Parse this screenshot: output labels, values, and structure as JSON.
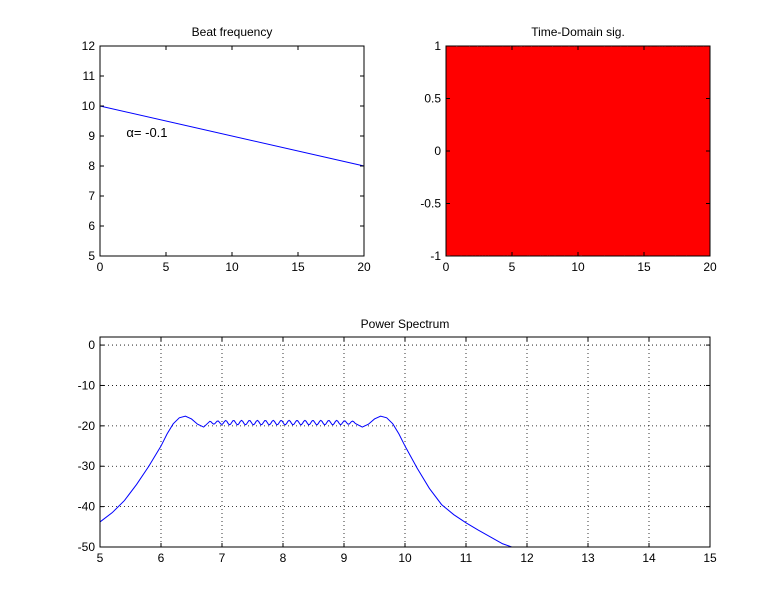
{
  "chart_data": [
    {
      "id": "beat",
      "type": "line",
      "title": "Beat frequency",
      "xlabel": "",
      "ylabel": "",
      "xlim": [
        0,
        20
      ],
      "ylim": [
        5,
        12
      ],
      "xticks": [
        0,
        5,
        10,
        15,
        20
      ],
      "yticks": [
        5,
        6,
        7,
        8,
        9,
        10,
        11,
        12
      ],
      "grid": false,
      "annotation": {
        "prefix": "α",
        "text": "= -0.1",
        "x": 2,
        "y": 9.1
      },
      "series": [
        {
          "color": "#0000ff",
          "x": [
            0,
            20
          ],
          "y": [
            10,
            8
          ]
        }
      ]
    },
    {
      "id": "time",
      "type": "line",
      "title": "Time-Domain sig.",
      "xlabel": "",
      "ylabel": "",
      "xlim": [
        0,
        20
      ],
      "ylim": [
        -1,
        1
      ],
      "xticks": [
        0,
        5,
        10,
        15,
        20
      ],
      "yticks": [
        -1,
        -0.5,
        0,
        0.5,
        1
      ],
      "grid": false,
      "signal": {
        "description": "rapid chirp oscillation filling full amplitude",
        "amplitude": 1,
        "f0": 10,
        "alpha": -0.1,
        "color": "#ff0000"
      }
    },
    {
      "id": "spectrum",
      "type": "line",
      "title": "Power Spectrum",
      "xlabel": "",
      "ylabel": "",
      "xlim": [
        5,
        15
      ],
      "ylim": [
        -50,
        2
      ],
      "xticks": [
        5,
        6,
        7,
        8,
        9,
        10,
        11,
        12,
        13,
        14,
        15
      ],
      "yticks": [
        -50,
        -40,
        -30,
        -20,
        -10,
        0
      ],
      "grid": true,
      "series": [
        {
          "color": "#0000ff",
          "x": [
            5.0,
            5.2,
            5.4,
            5.6,
            5.8,
            6.0,
            6.1,
            6.2,
            6.3,
            6.4,
            6.5,
            6.6,
            6.7,
            6.8,
            9.2,
            9.3,
            9.4,
            9.5,
            9.6,
            9.7,
            9.8,
            9.9,
            10.0,
            10.2,
            10.4,
            10.6,
            10.8,
            11.0,
            11.2,
            11.4,
            11.6,
            11.75
          ],
          "y": [
            -43.8,
            -41.5,
            -38.5,
            -34.5,
            -30,
            -25,
            -22,
            -19.5,
            -18,
            -17.6,
            -18.3,
            -19.6,
            -20.3,
            -19.5,
            -19.5,
            -20.3,
            -19.6,
            -18.3,
            -17.6,
            -18,
            -19.5,
            -22,
            -25,
            -30.5,
            -35.5,
            -39.5,
            -42,
            -44,
            -45.8,
            -47.5,
            -49.2,
            -50
          ]
        }
      ],
      "ripple": {
        "x_start": 6.8,
        "x_end": 9.2,
        "center": -19.2,
        "amplitude": 0.55,
        "period": 0.13
      }
    }
  ]
}
